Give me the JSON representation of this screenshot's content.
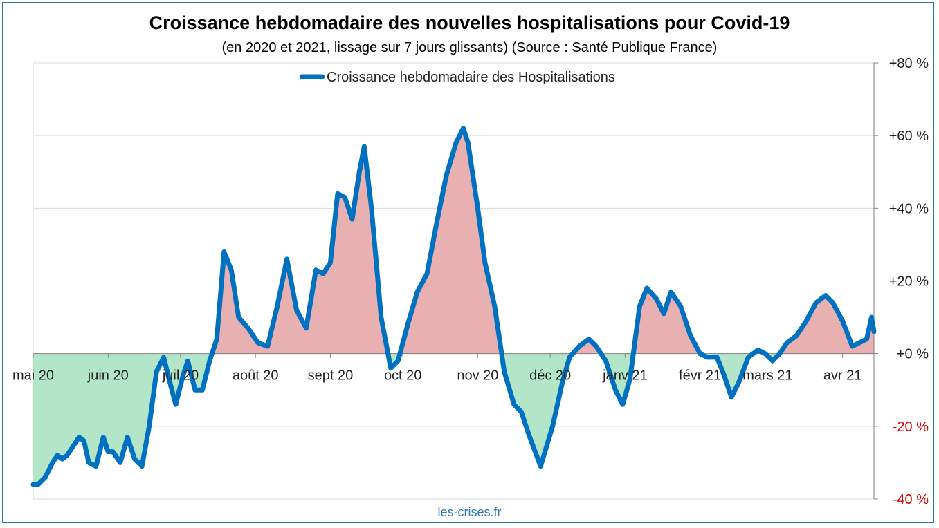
{
  "title": "Croissance hebdomadaire des nouvelles hospitalisations pour Covid-19",
  "subtitle": "(en 2020 et 2021, lissage sur 7 jours glissants) (Source : Santé Publique France)",
  "credit": "les-crises.fr",
  "colors": {
    "line": "#0070c0",
    "positive_fill": "#e8b0b0",
    "negative_fill": "#b3e6c8",
    "negative_tick": "#e00000",
    "grid": "#d9d9d9",
    "frame": "#2e75b6"
  },
  "chart_data": {
    "type": "line",
    "title": "Croissance hebdomadaire des nouvelles hospitalisations pour Covid-19",
    "subtitle": "(en 2020 et 2021, lissage sur 7 jours glissants) (Source : Santé Publique France)",
    "xlabel": "",
    "ylabel": "",
    "ylim": [
      -40,
      80
    ],
    "y_axis_side": "right",
    "grid": true,
    "legend": "top-center",
    "y_ticks": [
      {
        "value": 80,
        "label": "+80 %"
      },
      {
        "value": 60,
        "label": "+60 %"
      },
      {
        "value": 40,
        "label": "+40 %"
      },
      {
        "value": 20,
        "label": "+20 %"
      },
      {
        "value": 0,
        "label": "+0 %"
      },
      {
        "value": -20,
        "label": "-20 %"
      },
      {
        "value": -40,
        "label": "-40 %"
      }
    ],
    "x_ticks": [
      {
        "date": "2020-05-01",
        "label": "mai 20"
      },
      {
        "date": "2020-06-01",
        "label": "juin 20"
      },
      {
        "date": "2020-07-01",
        "label": "juil 20"
      },
      {
        "date": "2020-08-01",
        "label": "août 20"
      },
      {
        "date": "2020-09-01",
        "label": "sept 20"
      },
      {
        "date": "2020-10-01",
        "label": "oct 20"
      },
      {
        "date": "2020-11-01",
        "label": "nov 20"
      },
      {
        "date": "2020-12-01",
        "label": "déc 20"
      },
      {
        "date": "2021-01-01",
        "label": "janv 21"
      },
      {
        "date": "2021-02-01",
        "label": "févr 21"
      },
      {
        "date": "2021-03-01",
        "label": "mars 21"
      },
      {
        "date": "2021-04-01",
        "label": "avr 21"
      }
    ],
    "x_start": "2020-05-01",
    "x_end": "2021-04-14",
    "series": [
      {
        "name": "Croissance hebdomadaire des Hospitalisations",
        "points": [
          [
            "2020-05-01",
            -36
          ],
          [
            "2020-05-03",
            -36
          ],
          [
            "2020-05-06",
            -34
          ],
          [
            "2020-05-09",
            -30
          ],
          [
            "2020-05-11",
            -28
          ],
          [
            "2020-05-13",
            -29
          ],
          [
            "2020-05-15",
            -28
          ],
          [
            "2020-05-17",
            -26
          ],
          [
            "2020-05-20",
            -23
          ],
          [
            "2020-05-22",
            -24
          ],
          [
            "2020-05-24",
            -30
          ],
          [
            "2020-05-27",
            -31
          ],
          [
            "2020-05-30",
            -23
          ],
          [
            "2020-06-01",
            -27
          ],
          [
            "2020-06-03",
            -27
          ],
          [
            "2020-06-06",
            -30
          ],
          [
            "2020-06-09",
            -23
          ],
          [
            "2020-06-12",
            -29
          ],
          [
            "2020-06-15",
            -31
          ],
          [
            "2020-06-18",
            -20
          ],
          [
            "2020-06-21",
            -5
          ],
          [
            "2020-06-24",
            -1
          ],
          [
            "2020-06-27",
            -9
          ],
          [
            "2020-06-29",
            -14
          ],
          [
            "2020-07-02",
            -6
          ],
          [
            "2020-07-04",
            -2
          ],
          [
            "2020-07-07",
            -10
          ],
          [
            "2020-07-10",
            -10
          ],
          [
            "2020-07-13",
            -2
          ],
          [
            "2020-07-16",
            4
          ],
          [
            "2020-07-19",
            28
          ],
          [
            "2020-07-22",
            23
          ],
          [
            "2020-07-25",
            10
          ],
          [
            "2020-07-29",
            7
          ],
          [
            "2020-08-02",
            3
          ],
          [
            "2020-08-06",
            2
          ],
          [
            "2020-08-10",
            13
          ],
          [
            "2020-08-14",
            26
          ],
          [
            "2020-08-18",
            12
          ],
          [
            "2020-08-22",
            7
          ],
          [
            "2020-08-26",
            23
          ],
          [
            "2020-08-29",
            22
          ],
          [
            "2020-09-01",
            25
          ],
          [
            "2020-09-04",
            44
          ],
          [
            "2020-09-07",
            43
          ],
          [
            "2020-09-10",
            37
          ],
          [
            "2020-09-13",
            50
          ],
          [
            "2020-09-15",
            57
          ],
          [
            "2020-09-18",
            40
          ],
          [
            "2020-09-22",
            10
          ],
          [
            "2020-09-26",
            -4
          ],
          [
            "2020-09-29",
            -2
          ],
          [
            "2020-10-03",
            8
          ],
          [
            "2020-10-07",
            17
          ],
          [
            "2020-10-11",
            22
          ],
          [
            "2020-10-15",
            36
          ],
          [
            "2020-10-19",
            49
          ],
          [
            "2020-10-23",
            58
          ],
          [
            "2020-10-26",
            62
          ],
          [
            "2020-10-28",
            58
          ],
          [
            "2020-11-01",
            40
          ],
          [
            "2020-11-04",
            25
          ],
          [
            "2020-11-08",
            13
          ],
          [
            "2020-11-12",
            -5
          ],
          [
            "2020-11-16",
            -14
          ],
          [
            "2020-11-19",
            -16
          ],
          [
            "2020-11-22",
            -22
          ],
          [
            "2020-11-27",
            -31
          ],
          [
            "2020-12-02",
            -20
          ],
          [
            "2020-12-06",
            -8
          ],
          [
            "2020-12-09",
            -1
          ],
          [
            "2020-12-13",
            2
          ],
          [
            "2020-12-17",
            4
          ],
          [
            "2020-12-20",
            2
          ],
          [
            "2020-12-24",
            -2
          ],
          [
            "2020-12-28",
            -10
          ],
          [
            "2020-12-31",
            -14
          ],
          [
            "2021-01-03",
            -7
          ],
          [
            "2021-01-07",
            13
          ],
          [
            "2021-01-10",
            18
          ],
          [
            "2021-01-14",
            15
          ],
          [
            "2021-01-17",
            11
          ],
          [
            "2021-01-20",
            17
          ],
          [
            "2021-01-24",
            13
          ],
          [
            "2021-01-28",
            5
          ],
          [
            "2021-02-01",
            0
          ],
          [
            "2021-02-04",
            -1
          ],
          [
            "2021-02-08",
            -1
          ],
          [
            "2021-02-11",
            -6
          ],
          [
            "2021-02-14",
            -12
          ],
          [
            "2021-02-17",
            -8
          ],
          [
            "2021-02-21",
            -1
          ],
          [
            "2021-02-25",
            1
          ],
          [
            "2021-02-28",
            0
          ],
          [
            "2021-03-03",
            -2
          ],
          [
            "2021-03-06",
            0
          ],
          [
            "2021-03-09",
            3
          ],
          [
            "2021-03-13",
            5
          ],
          [
            "2021-03-17",
            9
          ],
          [
            "2021-03-21",
            14
          ],
          [
            "2021-03-25",
            16
          ],
          [
            "2021-03-28",
            14
          ],
          [
            "2021-04-01",
            9
          ],
          [
            "2021-04-05",
            2
          ],
          [
            "2021-04-08",
            3
          ],
          [
            "2021-04-11",
            4
          ],
          [
            "2021-04-13",
            10
          ],
          [
            "2021-04-14",
            6
          ]
        ]
      }
    ]
  }
}
